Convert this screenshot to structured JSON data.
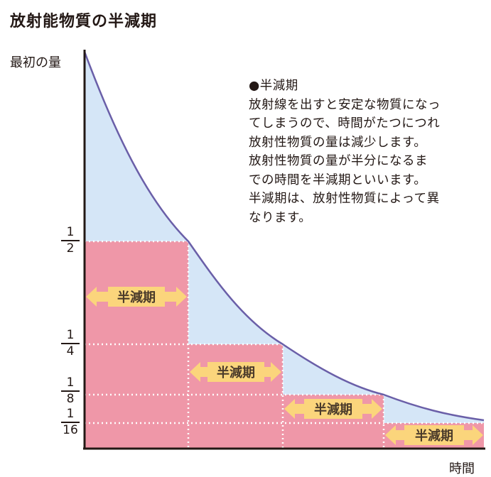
{
  "title": "放射能物質の半減期",
  "axes": {
    "y_label": "最初の量",
    "x_label": "時間"
  },
  "levels": [
    {
      "num": "1",
      "den": "2"
    },
    {
      "num": "1",
      "den": "4"
    },
    {
      "num": "1",
      "den": "8"
    },
    {
      "num": "1",
      "den": "16"
    }
  ],
  "arrow_label": "半減期",
  "note": {
    "heading": "●半減期",
    "lines": [
      "放射線を出すと安定な物質になっ",
      "てしまうので、時間がたつにつれ",
      "放射性物質の量は減少します。",
      "放射性物質の量が半分になるま",
      "での時間を半減期といいます。",
      "半減期は、放射性物質によって異",
      "なります。"
    ]
  },
  "colors": {
    "curve": "#6a5fa8",
    "under_curve": "#d5e6f7",
    "steps": "#ef97a8",
    "arrow": "#fbd57c",
    "axis": "#231815"
  }
}
